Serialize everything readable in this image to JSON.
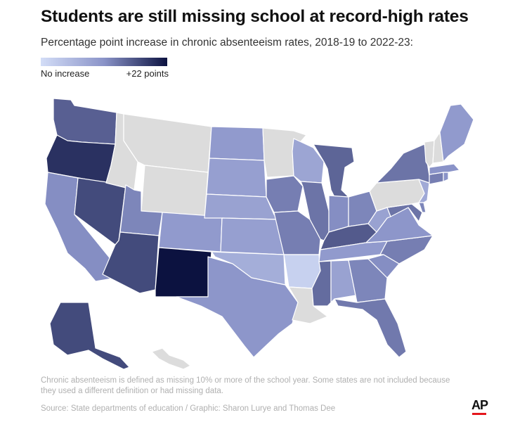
{
  "title": "Students are still missing school at record-high rates",
  "subtitle": "Percentage point increase in chronic absenteeism rates, 2018-19 to 2022-23:",
  "legend": {
    "min_label": "No increase",
    "max_label": "+22 points",
    "colors": [
      "#d3ddf7",
      "#8a93c8",
      "#0c1240"
    ]
  },
  "map_data": {
    "type": "choropleth",
    "region": "United States",
    "scale_min": 0,
    "scale_max": 22,
    "no_data_color": "#dcdcdc",
    "states": [
      {
        "id": "WA",
        "level": 0.7
      },
      {
        "id": "OR",
        "level": 0.88
      },
      {
        "id": "CA",
        "level": 0.52
      },
      {
        "id": "NV",
        "level": 0.78
      },
      {
        "id": "ID",
        "level": null
      },
      {
        "id": "MT",
        "level": null
      },
      {
        "id": "WY",
        "level": null
      },
      {
        "id": "UT",
        "level": 0.55
      },
      {
        "id": "CO",
        "level": 0.45
      },
      {
        "id": "AZ",
        "level": 0.78
      },
      {
        "id": "NM",
        "level": 1.0
      },
      {
        "id": "ND",
        "level": 0.45
      },
      {
        "id": "SD",
        "level": 0.42
      },
      {
        "id": "NE",
        "level": 0.4
      },
      {
        "id": "KS",
        "level": 0.42
      },
      {
        "id": "OK",
        "level": 0.32
      },
      {
        "id": "TX",
        "level": 0.48
      },
      {
        "id": "MN",
        "level": null
      },
      {
        "id": "IA",
        "level": 0.58
      },
      {
        "id": "MO",
        "level": 0.58
      },
      {
        "id": "AR",
        "level": 0.08
      },
      {
        "id": "LA",
        "level": null
      },
      {
        "id": "WI",
        "level": 0.38
      },
      {
        "id": "IL",
        "level": 0.62
      },
      {
        "id": "MI",
        "level": 0.68
      },
      {
        "id": "IN",
        "level": 0.52
      },
      {
        "id": "OH",
        "level": 0.55
      },
      {
        "id": "KY",
        "level": 0.72
      },
      {
        "id": "TN",
        "level": 0.45
      },
      {
        "id": "MS",
        "level": 0.65
      },
      {
        "id": "AL",
        "level": 0.4
      },
      {
        "id": "GA",
        "level": 0.55
      },
      {
        "id": "FL",
        "level": 0.6
      },
      {
        "id": "SC",
        "level": 0.52
      },
      {
        "id": "NC",
        "level": 0.58
      },
      {
        "id": "VA",
        "level": 0.48
      },
      {
        "id": "WV",
        "level": 0.4
      },
      {
        "id": "MD",
        "level": 0.62
      },
      {
        "id": "DE",
        "level": 0.55
      },
      {
        "id": "PA",
        "level": null
      },
      {
        "id": "NJ",
        "level": 0.35
      },
      {
        "id": "NY",
        "level": 0.62
      },
      {
        "id": "CT",
        "level": 0.58
      },
      {
        "id": "RI",
        "level": 0.5
      },
      {
        "id": "MA",
        "level": 0.5
      },
      {
        "id": "VT",
        "level": null
      },
      {
        "id": "NH",
        "level": null
      },
      {
        "id": "ME",
        "level": 0.45
      },
      {
        "id": "AK",
        "level": 0.78
      },
      {
        "id": "HI",
        "level": null
      }
    ]
  },
  "note": "Chronic absenteeism is defined as missing 10% or more of the school year. Some states are not included because they used a different definition or had missing data.",
  "source": "Source: State departments of education / Graphic: Sharon Lurye and Thomas Dee",
  "logo": "AP"
}
